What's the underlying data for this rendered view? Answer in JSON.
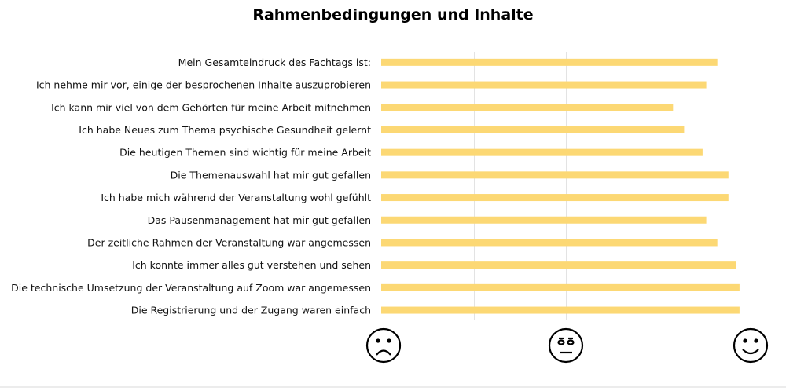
{
  "chart_data": {
    "type": "bar",
    "orientation": "horizontal",
    "title": "Rahmenbedingungen und Inhalte",
    "categories": [
      "Mein Gesamteindruck des Fachtags ist:",
      "Ich nehme mir vor, einige der besprochenen Inhalte auszuprobieren",
      "Ich kann mir viel von dem Gehörten für meine Arbeit mitnehmen",
      "Ich habe Neues zum Thema psychische Gesundheit gelernt",
      "Die heutigen Themen sind wichtig für meine Arbeit",
      "Die Themenauswahl hat mir gut gefallen",
      "Ich habe mich während der Veranstaltung wohl gefühlt",
      "Das Pausenmanagement hat mir gut gefallen",
      "Der zeitliche Rahmen der Veranstaltung war angemessen",
      "Ich konnte immer alles gut verstehen und sehen",
      "Die technische Umsetzung der Veranstaltung auf Zoom war angemessen",
      "Die Registrierung und der Zugang waren einfach"
    ],
    "values": [
      0.91,
      0.88,
      0.79,
      0.82,
      0.87,
      0.94,
      0.94,
      0.88,
      0.91,
      0.96,
      0.97,
      0.97
    ],
    "xlim": [
      0,
      1
    ],
    "x_ticks": [
      0,
      0.5,
      1
    ],
    "x_tick_icons": [
      "sad-face-icon",
      "neutral-face-icon",
      "happy-face-icon"
    ],
    "grid": true,
    "bar_color": "#fcd874"
  }
}
